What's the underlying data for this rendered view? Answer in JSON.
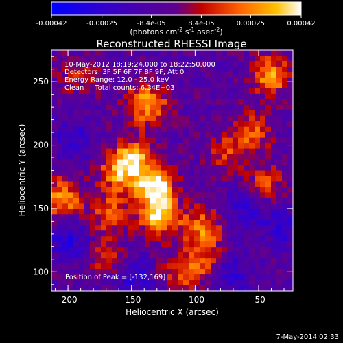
{
  "chart_data": {
    "type": "heatmap",
    "title": "Reconstructed RHESSI Image",
    "xlabel": "Heliocentric X (arcsec)",
    "ylabel": "Heliocentric Y (arcsec)",
    "xlim": [
      -213,
      -23
    ],
    "ylim": [
      85,
      275
    ],
    "xticks": [
      -200,
      -150,
      -100,
      -50
    ],
    "yticks": [
      100,
      150,
      200,
      250
    ],
    "colorbar": {
      "range": [
        -0.00042,
        0.00042
      ],
      "ticks": [
        -0.00042,
        -0.00025,
        -8.4e-05,
        8.4e-05,
        0.00025,
        0.00042
      ],
      "tick_labels": [
        "-0.00042",
        "-0.00025",
        "-8.4e-05",
        "8.4e-05",
        "0.00025",
        "0.00042"
      ],
      "units_label": "(photons cm",
      "units_sup1": "-2",
      "units_mid": " s",
      "units_sup2": "-1",
      "units_end": " asec",
      "units_sup3": "-2",
      "units_close": ")"
    },
    "annotations": [
      "10-May-2012 18:19:24.000 to 18:22:50.000",
      "Detectors: 3F 5F 6F 7F 8F 9F, Att 0",
      "Energy Range: 12.0 - 25.0 keV",
      "Clean     Total counts: 6.34E+03"
    ],
    "peak": {
      "label": "Position of Peak = [-132,169]",
      "x": -132,
      "y": 169
    },
    "sources": [
      {
        "x": -132,
        "y": 169,
        "a": 1.0
      },
      {
        "x": -128,
        "y": 145,
        "a": 1.0
      },
      {
        "x": -150,
        "y": 190,
        "a": 0.75
      },
      {
        "x": -138,
        "y": 232,
        "a": 0.8
      },
      {
        "x": -160,
        "y": 178,
        "a": 0.6
      },
      {
        "x": -205,
        "y": 158,
        "a": 0.75
      },
      {
        "x": -168,
        "y": 146,
        "a": 0.55
      },
      {
        "x": -95,
        "y": 135,
        "a": 0.65
      },
      {
        "x": -88,
        "y": 108,
        "a": 0.55
      },
      {
        "x": -110,
        "y": 100,
        "a": 0.5
      },
      {
        "x": -40,
        "y": 255,
        "a": 0.75
      },
      {
        "x": -55,
        "y": 210,
        "a": 0.55
      },
      {
        "x": -45,
        "y": 170,
        "a": 0.45
      },
      {
        "x": -75,
        "y": 195,
        "a": 0.4
      },
      {
        "x": -170,
        "y": 110,
        "a": 0.4
      },
      {
        "x": -190,
        "y": 255,
        "a": 0.35
      },
      {
        "x": -60,
        "y": 150,
        "a": -0.4
      },
      {
        "x": -200,
        "y": 125,
        "a": -0.45
      },
      {
        "x": -30,
        "y": 135,
        "a": -0.35
      },
      {
        "x": -75,
        "y": 100,
        "a": -0.5
      },
      {
        "x": -150,
        "y": 95,
        "a": -0.4
      },
      {
        "x": -195,
        "y": 205,
        "a": -0.3
      }
    ]
  },
  "footer_date": "7-May-2014 02:33"
}
